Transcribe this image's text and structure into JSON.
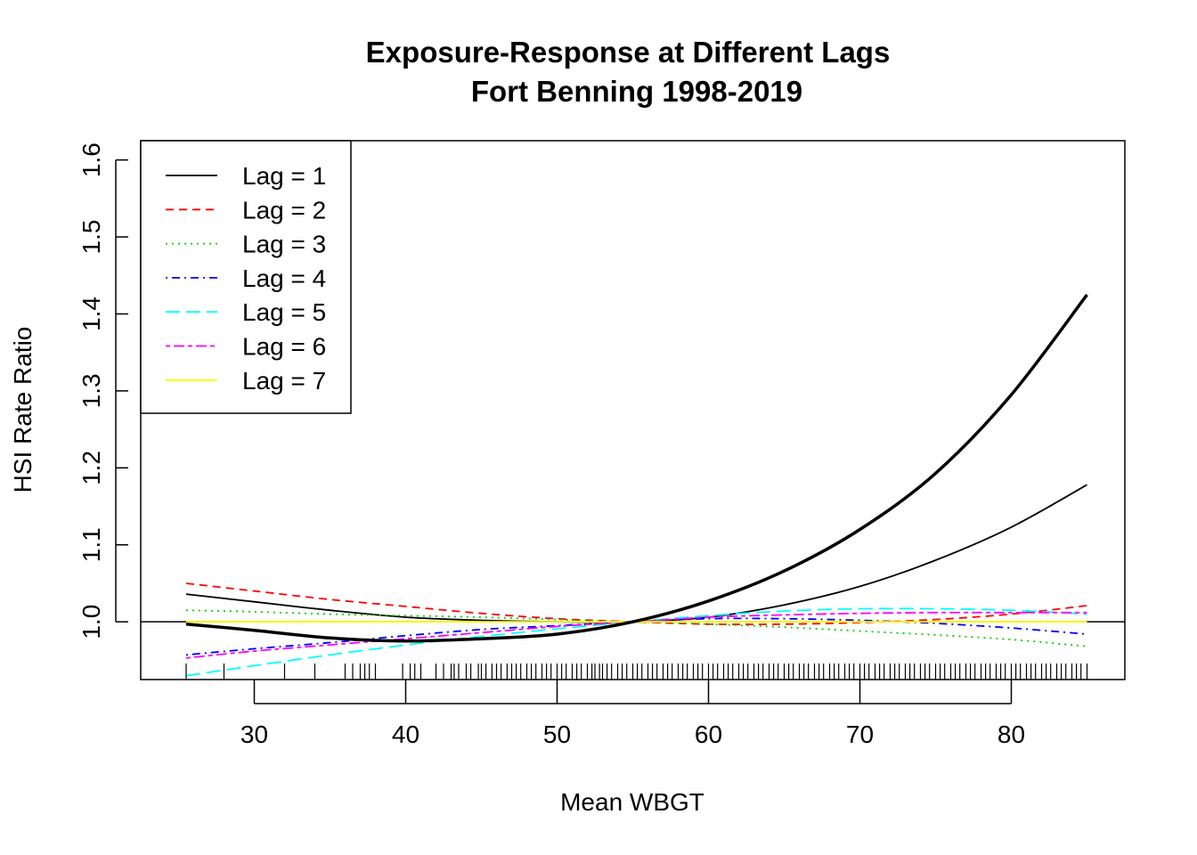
{
  "chart_data": {
    "type": "line",
    "title": "Exposure-Response at Different Lags",
    "subtitle": "Fort Benning 1998-2019",
    "xlabel": "Mean WBGT",
    "ylabel": "HSI Rate Ratio",
    "xlim": [
      22.5,
      87.5
    ],
    "ylim": [
      0.925,
      1.625
    ],
    "x_ticks": [
      "30",
      "40",
      "50",
      "60",
      "70",
      "80"
    ],
    "y_ticks": [
      "1.0",
      "1.1",
      "1.2",
      "1.3",
      "1.4",
      "1.5",
      "1.6"
    ],
    "reference_line": 1.0,
    "legend_position": "top-left",
    "legend": [
      {
        "label": "Lag = 1",
        "color": "#000000",
        "dash": "solid"
      },
      {
        "label": "Lag = 2",
        "color": "#ff0000",
        "dash": "dashed"
      },
      {
        "label": "Lag = 3",
        "color": "#00cd00",
        "dash": "dotted"
      },
      {
        "label": "Lag = 4",
        "color": "#0000ff",
        "dash": "dotdash"
      },
      {
        "label": "Lag = 5",
        "color": "#00ffff",
        "dash": "longdash"
      },
      {
        "label": "Lag = 6",
        "color": "#ff00ff",
        "dash": "twodash"
      },
      {
        "label": "Lag = 7",
        "color": "#ffff00",
        "dash": "solid"
      }
    ],
    "overall_curve": {
      "color": "#000000",
      "width": "thick",
      "x": [
        25.5,
        30,
        35,
        40,
        45,
        50,
        55,
        60,
        65,
        70,
        75,
        80,
        85
      ],
      "y": [
        0.997,
        0.989,
        0.979,
        0.975,
        0.978,
        0.984,
        1.0,
        1.027,
        1.066,
        1.12,
        1.193,
        1.295,
        1.425
      ]
    },
    "series": [
      {
        "name": "Lag = 1",
        "color": "#000000",
        "dash": "solid",
        "x": [
          25.5,
          30,
          35,
          40,
          45,
          50,
          55,
          60,
          65,
          70,
          75,
          80,
          85
        ],
        "y": [
          1.036,
          1.026,
          1.015,
          1.006,
          1.002,
          1.0,
          1.0,
          1.006,
          1.022,
          1.046,
          1.08,
          1.123,
          1.178
        ]
      },
      {
        "name": "Lag = 2",
        "color": "#ff0000",
        "dash": "dashed",
        "x": [
          25.5,
          30,
          35,
          40,
          45,
          50,
          55,
          60,
          65,
          70,
          75,
          80,
          85
        ],
        "y": [
          1.05,
          1.04,
          1.029,
          1.02,
          1.011,
          1.004,
          1.0,
          0.997,
          0.997,
          0.999,
          1.003,
          1.01,
          1.021
        ]
      },
      {
        "name": "Lag = 3",
        "color": "#00cd00",
        "dash": "dotted",
        "x": [
          25.5,
          30,
          35,
          40,
          45,
          50,
          55,
          60,
          65,
          70,
          75,
          80,
          85
        ],
        "y": [
          1.015,
          1.013,
          1.01,
          1.008,
          1.006,
          1.003,
          1.0,
          0.997,
          0.993,
          0.988,
          0.983,
          0.977,
          0.968
        ]
      },
      {
        "name": "Lag = 4",
        "color": "#0000ff",
        "dash": "dotdash",
        "x": [
          25.5,
          30,
          35,
          40,
          45,
          50,
          55,
          60,
          65,
          70,
          75,
          80,
          85
        ],
        "y": [
          0.957,
          0.965,
          0.973,
          0.982,
          0.99,
          0.995,
          1.0,
          1.004,
          1.004,
          1.002,
          0.998,
          0.992,
          0.984
        ]
      },
      {
        "name": "Lag = 5",
        "color": "#00ffff",
        "dash": "longdash",
        "x": [
          25.5,
          30,
          35,
          40,
          45,
          50,
          55,
          60,
          65,
          70,
          75,
          80,
          85
        ],
        "y": [
          0.93,
          0.943,
          0.957,
          0.97,
          0.981,
          0.991,
          1.0,
          1.008,
          1.014,
          1.017,
          1.017,
          1.015,
          1.01
        ]
      },
      {
        "name": "Lag = 6",
        "color": "#ff00ff",
        "dash": "twodash",
        "x": [
          25.5,
          30,
          35,
          40,
          45,
          50,
          55,
          60,
          65,
          70,
          75,
          80,
          85
        ],
        "y": [
          0.953,
          0.962,
          0.97,
          0.978,
          0.986,
          0.994,
          1.0,
          1.006,
          1.009,
          1.011,
          1.012,
          1.012,
          1.012
        ]
      },
      {
        "name": "Lag = 7",
        "color": "#ffff00",
        "dash": "solid",
        "x": [
          25.5,
          30,
          35,
          40,
          45,
          50,
          55,
          60,
          65,
          70,
          75,
          80,
          85
        ],
        "y": [
          1.0,
          1.0,
          1.0,
          1.0,
          1.0,
          1.0,
          1.0,
          1.0,
          1.0,
          1.0,
          1.0,
          1.0,
          1.0
        ]
      }
    ],
    "rug": {
      "x": [
        25.5,
        28,
        32,
        34,
        36,
        36.5,
        37,
        37.3,
        37.6,
        38,
        39.8,
        40.3,
        40.6,
        41,
        42,
        42.5,
        43,
        43.2,
        43.5,
        44,
        44.3,
        44.8,
        45,
        45.3,
        45.7,
        46,
        46.3,
        46.7,
        47,
        47.3,
        47.6,
        48,
        48.3,
        48.6,
        49,
        49.3,
        49.6,
        50,
        50.3,
        50.6,
        51,
        51.3,
        51.6,
        52,
        52.3,
        52.5,
        52.8,
        53,
        53.3,
        53.6,
        54,
        54.3,
        54.6,
        55,
        55.3,
        55.6,
        56,
        56.3,
        56.6,
        57,
        57.3,
        57.6,
        58,
        58.3,
        58.6,
        59,
        59.3,
        59.6,
        60,
        60.3,
        60.6,
        61,
        61.3,
        61.6,
        62,
        62.3,
        62.6,
        63,
        63.3,
        63.6,
        64,
        64.3,
        64.6,
        65,
        65.3,
        65.6,
        66,
        66.3,
        66.6,
        67,
        67.3,
        67.6,
        68,
        68.3,
        68.6,
        69,
        69.3,
        69.6,
        70,
        70.3,
        70.6,
        71,
        71.3,
        71.6,
        72,
        72.3,
        72.6,
        73,
        73.3,
        73.6,
        74,
        74.3,
        74.6,
        75,
        75.3,
        75.6,
        76,
        76.3,
        76.6,
        77,
        77.3,
        77.6,
        78,
        78.3,
        78.6,
        79,
        79.3,
        79.6,
        80,
        80.3,
        80.6,
        81,
        81.3,
        81.6,
        82,
        82.3,
        82.6,
        83,
        83.3,
        83.6,
        84,
        84.3,
        84.6,
        85
      ]
    }
  }
}
